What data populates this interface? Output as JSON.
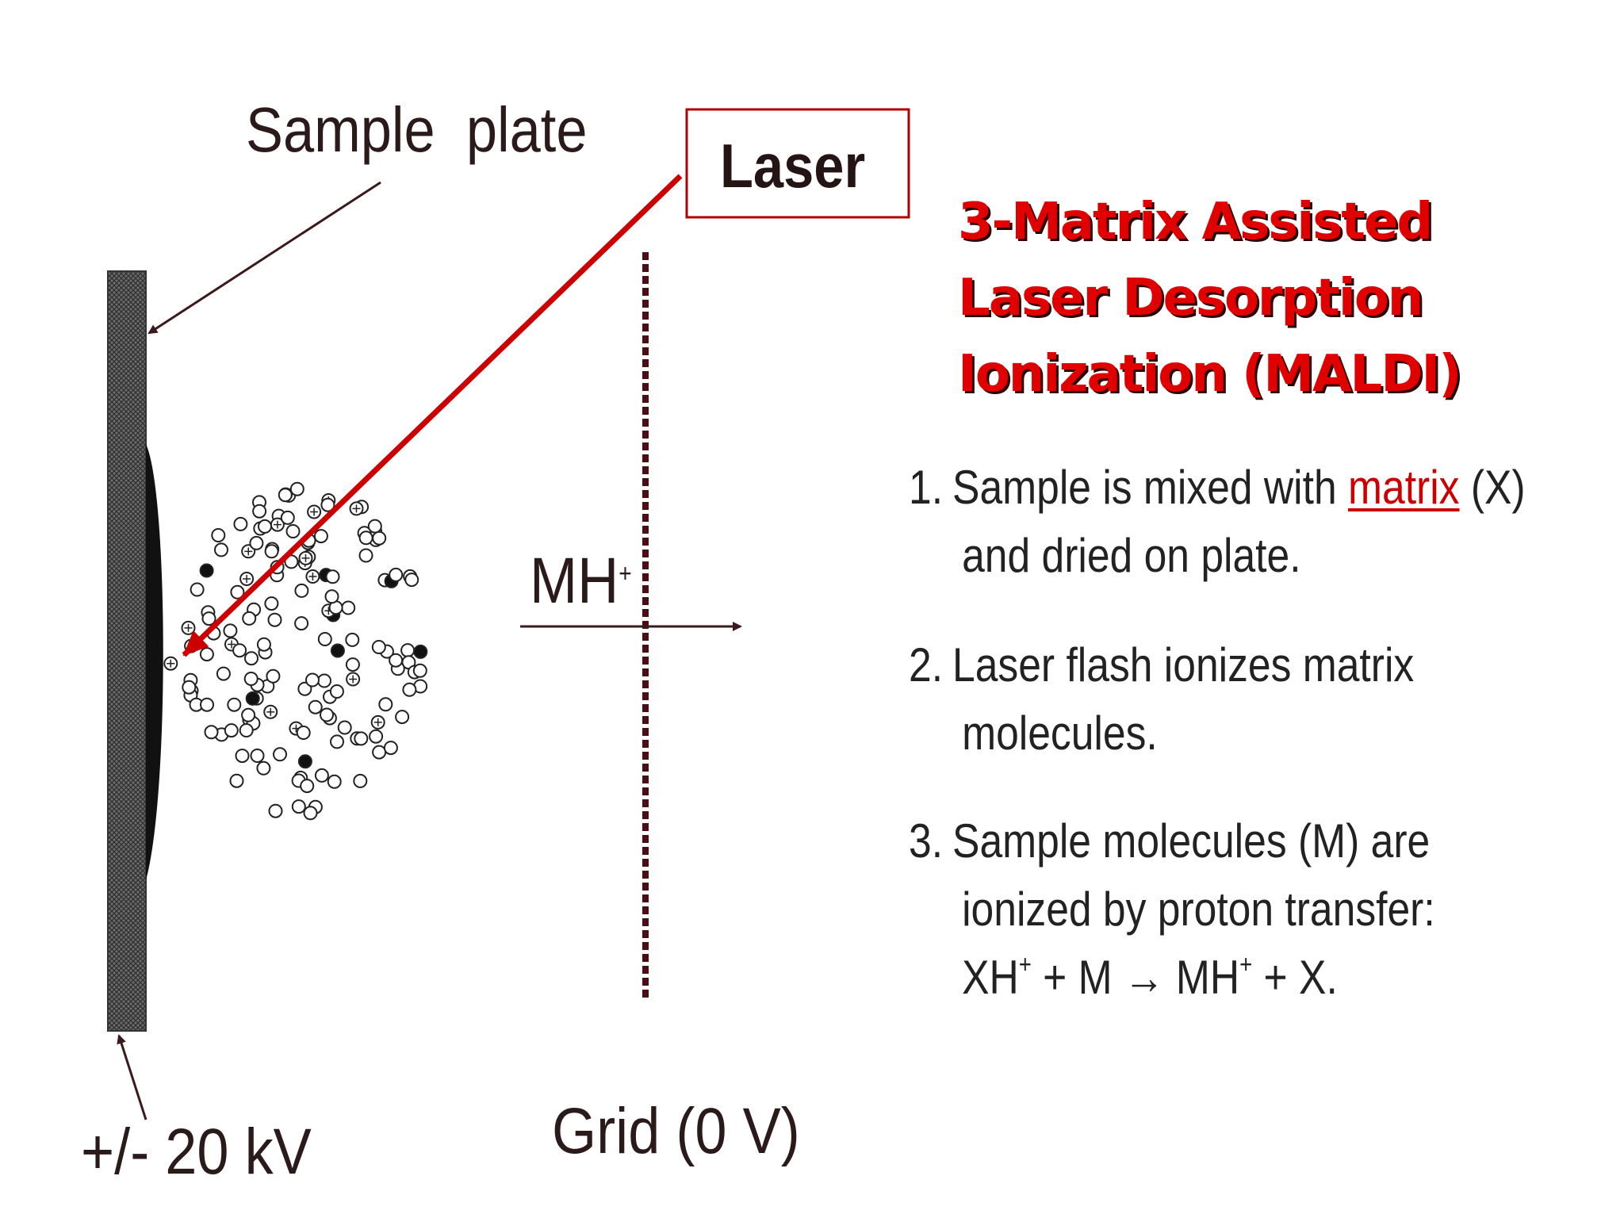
{
  "labels": {
    "sample_plate": "Sample  plate",
    "laser": "Laser",
    "ion": "MH",
    "ion_charge": "+",
    "voltage": "+/- 20 kV",
    "grid": "Grid (0 V)"
  },
  "title": {
    "line1": "3-Matrix Assisted",
    "line2": "Laser Desorption",
    "line3": "Ionization (MALDI)"
  },
  "steps": [
    {
      "number": "1.",
      "text_before": "Sample is mixed with ",
      "highlight": "matrix",
      "text_after": " (X)",
      "line2": "and dried on plate."
    },
    {
      "number": "2.",
      "line1": "Laser flash ionizes matrix",
      "line2": "molecules."
    },
    {
      "number": "3.",
      "line1": "Sample molecules (M) are",
      "line2": "ionized by proton transfer:",
      "eq_xh": "XH",
      "eq_sup1": "+",
      "eq_mid": " + M → MH",
      "eq_sup2": "+",
      "eq_end": " + X."
    }
  ],
  "colors": {
    "laser_beam": "#cc0000",
    "title": "#e00000",
    "highlight": "#cc0000",
    "grid_line": "#4a0f14"
  }
}
